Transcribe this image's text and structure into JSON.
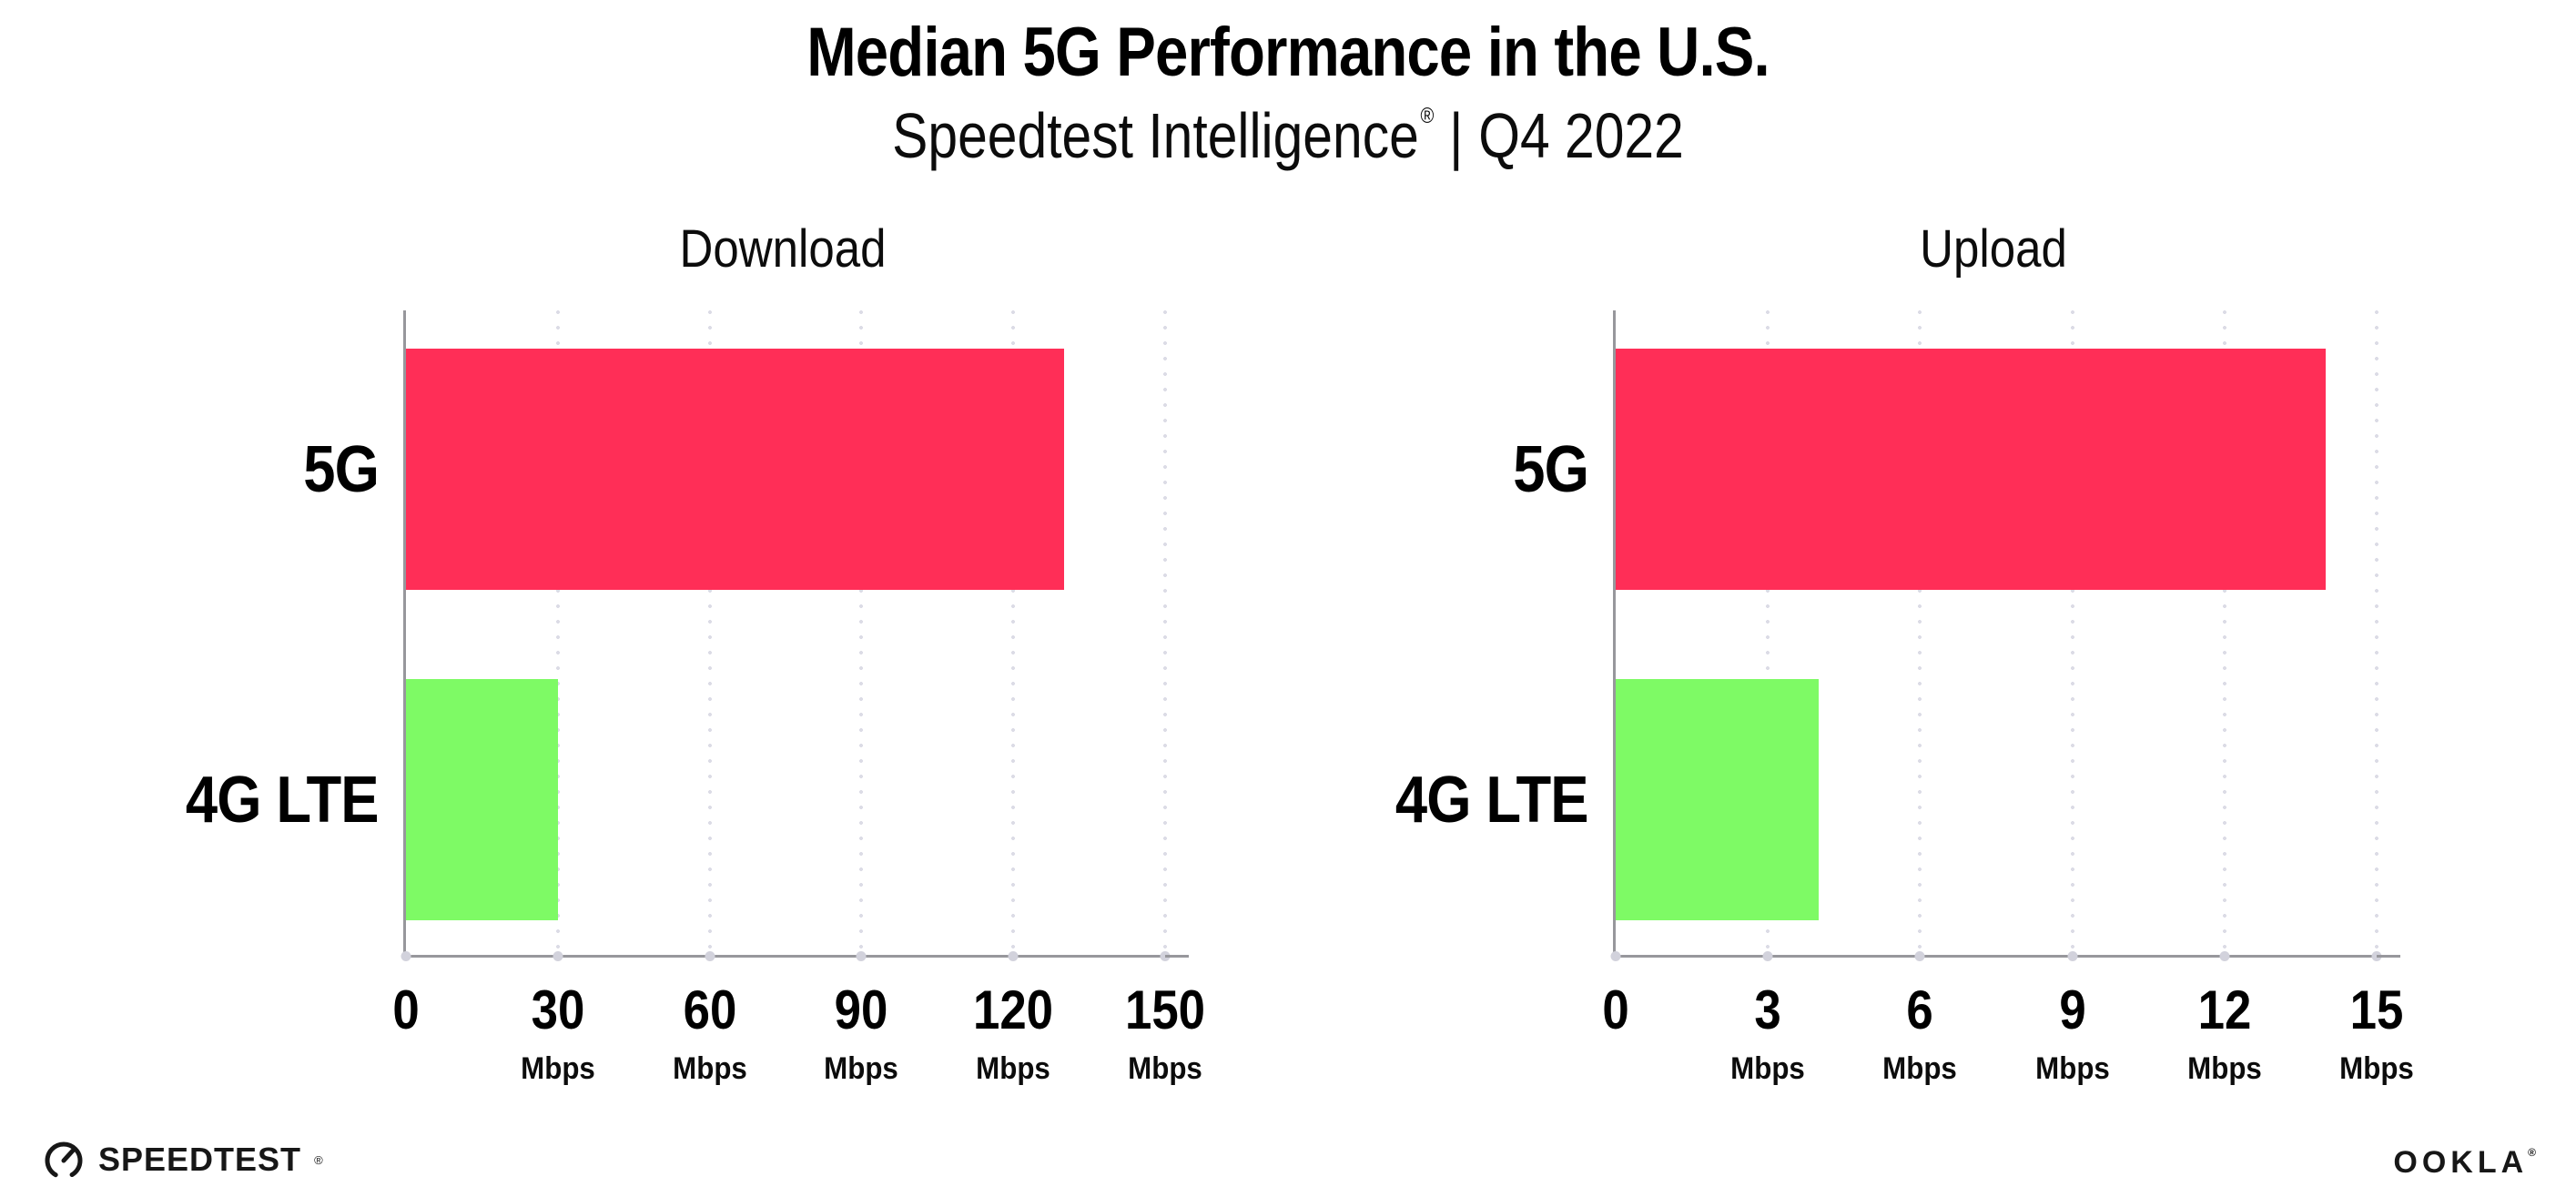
{
  "header": {
    "title": "Median 5G Performance in the U.S.",
    "subtitle_brand": "Speedtest Intelligence",
    "subtitle_trademark": "®",
    "subtitle_separator": "|",
    "subtitle_period": "Q4 2022"
  },
  "chart_data": [
    {
      "type": "bar",
      "orientation": "horizontal",
      "title": "Download",
      "categories": [
        "5G",
        "4G LTE"
      ],
      "values": [
        130,
        30
      ],
      "unit": "Mbps",
      "xlim": [
        0,
        150
      ],
      "xticks": [
        0,
        30,
        60,
        90,
        120,
        150
      ],
      "xtick_unit_label": "Mbps",
      "bar_colors": [
        "#ff2e57",
        "#7efa65"
      ],
      "grid": "vertical-dotted",
      "legend": "none"
    },
    {
      "type": "bar",
      "orientation": "horizontal",
      "title": "Upload",
      "categories": [
        "5G",
        "4G LTE"
      ],
      "values": [
        14,
        4
      ],
      "unit": "Mbps",
      "xlim": [
        0,
        15
      ],
      "xticks": [
        0,
        3,
        6,
        9,
        12,
        15
      ],
      "xtick_unit_label": "Mbps",
      "bar_colors": [
        "#ff2e57",
        "#7efa65"
      ],
      "grid": "vertical-dotted",
      "legend": "none"
    }
  ],
  "footer": {
    "speedtest_label": "SPEEDTEST",
    "speedtest_trademark": "®",
    "ookla_label": "OOKLA",
    "ookla_trademark": "®"
  },
  "colors": {
    "bar_5g": "#ff2e57",
    "bar_4g_lte": "#7efa65",
    "axis": "#97979c",
    "gridline": "#dcdce6",
    "text": "#0b0b0b",
    "background": "#ffffff"
  }
}
